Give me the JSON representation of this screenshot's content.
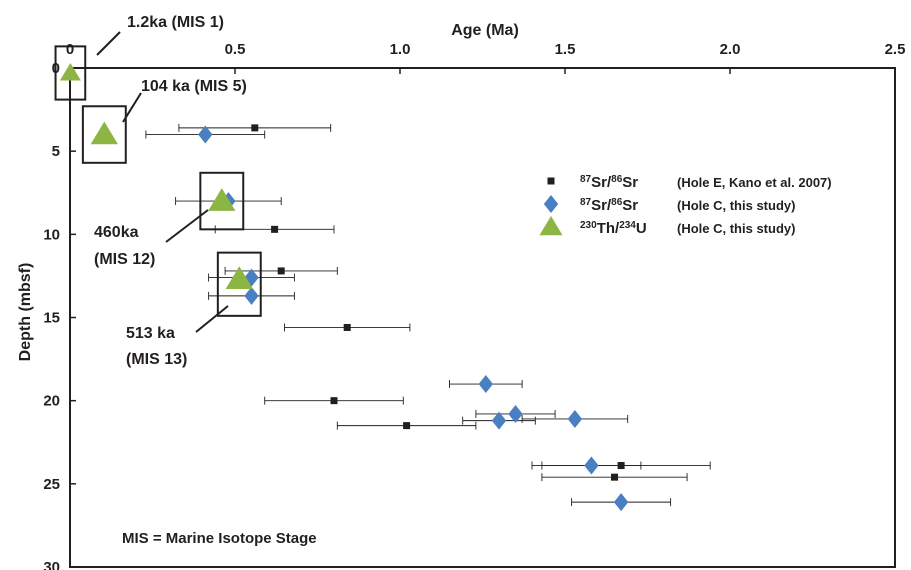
{
  "chart_data": {
    "type": "scatter",
    "xlabel": "Age (Ma)",
    "ylabel": "Depth (mbsf)",
    "xlim": [
      0,
      2.5
    ],
    "ylim": [
      0,
      30
    ],
    "y_inverted": true,
    "x_axis_position": "top",
    "grid": false,
    "x_ticks": [
      "0",
      "0.5",
      "1.0",
      "1.5",
      "2.0",
      "2.5"
    ],
    "x_tick_values": [
      0,
      0.5,
      1.0,
      1.5,
      2.0,
      2.5
    ],
    "y_ticks": [
      "0",
      "5",
      "10",
      "15",
      "20",
      "25",
      "30"
    ],
    "y_tick_values": [
      0,
      5,
      10,
      15,
      20,
      25,
      30
    ],
    "legend_position": "right",
    "series": [
      {
        "name": "87Sr/86Sr (Hole E, Kano et al. 2007)",
        "legend": {
          "sup1": "87",
          "a": "Sr/",
          "sup2": "86",
          "b": "Sr",
          "note": "(Hole E, Kano et al. 2007)"
        },
        "marker": "square",
        "color": "#231f20",
        "points": [
          {
            "x": 0.56,
            "y": 3.6,
            "xerr": 0.23
          },
          {
            "x": 0.62,
            "y": 9.7,
            "xerr": 0.18
          },
          {
            "x": 0.64,
            "y": 12.2,
            "xerr": 0.17
          },
          {
            "x": 0.84,
            "y": 15.6,
            "xerr": 0.19
          },
          {
            "x": 0.8,
            "y": 20.0,
            "xerr": 0.21
          },
          {
            "x": 1.02,
            "y": 21.5,
            "xerr": 0.21
          },
          {
            "x": 1.67,
            "y": 23.9,
            "xerr": 0.27
          },
          {
            "x": 1.65,
            "y": 24.6,
            "xerr": 0.22
          }
        ]
      },
      {
        "name": "87Sr/86Sr (Hole C, this study)",
        "legend": {
          "sup1": "87",
          "a": "Sr/",
          "sup2": "86",
          "b": "Sr",
          "note": "(Hole C, this study)"
        },
        "marker": "diamond",
        "color": "#4a7fc1",
        "points": [
          {
            "x": 0.41,
            "y": 4.0,
            "xerr": 0.18
          },
          {
            "x": 0.48,
            "y": 8.0,
            "xerr": 0.16
          },
          {
            "x": 0.55,
            "y": 12.6,
            "xerr": 0.13
          },
          {
            "x": 0.55,
            "y": 13.7,
            "xerr": 0.13
          },
          {
            "x": 1.26,
            "y": 19.0,
            "xerr": 0.11
          },
          {
            "x": 1.35,
            "y": 20.8,
            "xerr": 0.12
          },
          {
            "x": 1.3,
            "y": 21.2,
            "xerr": 0.11
          },
          {
            "x": 1.53,
            "y": 21.1,
            "xerr": 0.16
          },
          {
            "x": 1.58,
            "y": 23.9,
            "xerr": 0.15
          },
          {
            "x": 1.67,
            "y": 26.1,
            "xerr": 0.15
          }
        ]
      },
      {
        "name": "230Th/234U (Hole C, this study)",
        "legend": {
          "sup1": "230",
          "a": "Th/",
          "sup2": "234",
          "b": "U",
          "note": "(Hole C, this study)"
        },
        "marker": "triangle",
        "color": "#8db543",
        "points": [
          {
            "x": 0.0012,
            "y": 0.3,
            "size": "small"
          },
          {
            "x": 0.104,
            "y": 4.0,
            "size": "large"
          },
          {
            "x": 0.46,
            "y": 8.0,
            "size": "large"
          },
          {
            "x": 0.513,
            "y": 12.7,
            "size": "large"
          }
        ]
      }
    ],
    "boxes": [
      {
        "x": 0.0012,
        "y": 0.3,
        "half_w": 0.045,
        "half_d": 1.6
      },
      {
        "x": 0.104,
        "y": 4.0,
        "half_w": 0.065,
        "half_d": 1.7
      },
      {
        "x": 0.46,
        "y": 8.0,
        "half_w": 0.065,
        "half_d": 1.7
      },
      {
        "x": 0.513,
        "y": 13.0,
        "half_w": 0.065,
        "half_d": 1.9
      }
    ],
    "annotations": [
      {
        "lines": [
          "1.2ka (MIS 1)"
        ]
      },
      {
        "lines": [
          "104 ka (MIS 5)"
        ]
      },
      {
        "lines": [
          "460ka",
          "(MIS 12)"
        ]
      },
      {
        "lines": [
          "513 ka",
          "(MIS 13)"
        ]
      }
    ],
    "note": "MIS = Marine Isotope Stage"
  }
}
